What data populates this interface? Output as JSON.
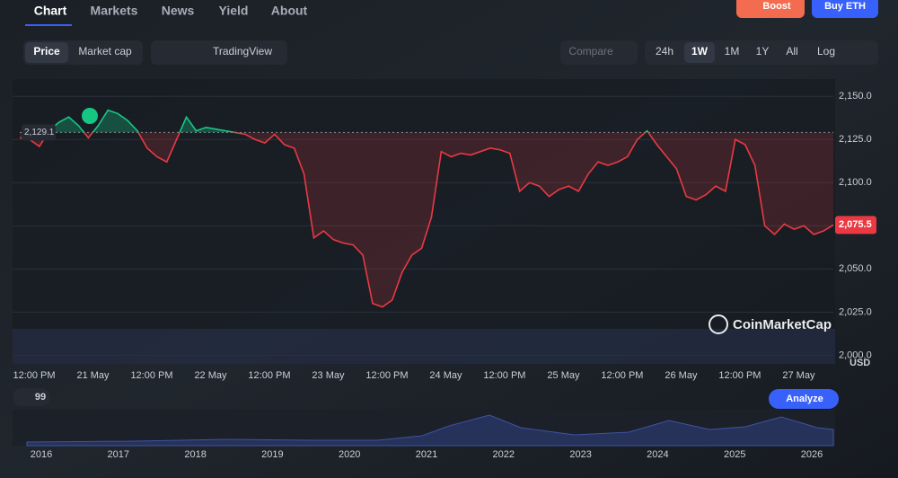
{
  "nav": {
    "tabs": [
      "Chart",
      "Markets",
      "News",
      "Yield",
      "About"
    ],
    "buttons": [
      "Boost",
      "Buy ETH"
    ]
  },
  "toolbar": {
    "toggle": [
      "Price",
      "Market cap"
    ],
    "tradingview": "TradingView",
    "compare": "Compare",
    "ranges": [
      "24h",
      "1W",
      "1M",
      "1Y",
      "All"
    ],
    "log": "Log"
  },
  "chart_data": {
    "type": "line",
    "currency": "USD",
    "watermark": "CoinMarketCap",
    "categories": [
      "12:00 PM",
      null,
      null,
      null,
      null,
      null,
      "21 May",
      null,
      null,
      null,
      null,
      null,
      "12:00 PM",
      null,
      null,
      null,
      null,
      null,
      "22 May",
      null,
      null,
      null,
      null,
      null,
      "12:00 PM",
      null,
      null,
      null,
      null,
      null,
      "23 May",
      null,
      null,
      null,
      null,
      null,
      "12:00 PM",
      null,
      null,
      null,
      null,
      null,
      "24 May",
      null,
      null,
      null,
      null,
      null,
      "12:00 PM",
      null,
      null,
      null,
      null,
      null,
      "25 May",
      null,
      null,
      null,
      null,
      null,
      "12:00 PM",
      null,
      null,
      null,
      null,
      null,
      "26 May",
      null,
      null,
      null,
      null,
      null,
      "12:00 PM",
      null,
      null,
      null,
      null,
      null,
      "27 May",
      null,
      null,
      null,
      null,
      null
    ],
    "values": [
      2126,
      2125,
      2121,
      2130,
      2135,
      2138,
      2133,
      2126,
      2133,
      2142,
      2140,
      2136,
      2130,
      2120,
      2115,
      2112,
      2125,
      2138,
      2130,
      2132,
      2131,
      2130,
      2129,
      2128,
      2125,
      2123,
      2128,
      2122,
      2120,
      2105,
      2068,
      2072,
      2067,
      2065,
      2064,
      2058,
      2030,
      2028,
      2032,
      2048,
      2058,
      2062,
      2080,
      2118,
      2115,
      2117,
      2116,
      2118,
      2120,
      2119,
      2117,
      2095,
      2100,
      2098,
      2092,
      2096,
      2098,
      2095,
      2105,
      2112,
      2110,
      2112,
      2115,
      2125,
      2130,
      2122,
      2115,
      2108,
      2092,
      2090,
      2093,
      2098,
      2095,
      2125,
      2122,
      2110,
      2075,
      2070,
      2076,
      2073,
      2075,
      2070,
      2072,
      2075.5
    ],
    "up_color": "#16c784",
    "down_color": "#ea3943",
    "baseline": {
      "value": 2129.1,
      "label": "2,129.1"
    },
    "current_price": {
      "value": 2075.5,
      "label": "2,075.5"
    },
    "ylim": [
      1995,
      2160
    ],
    "yticks": [
      {
        "value": 2000,
        "label": "2,000.0"
      },
      {
        "value": 2025,
        "label": "2,025.0"
      },
      {
        "value": 2050,
        "label": "2,050.0"
      },
      {
        "value": 2075,
        "label": "2,075.0"
      },
      {
        "value": 2100,
        "label": "2,100.0"
      },
      {
        "value": 2125,
        "label": "2,125.0"
      },
      {
        "value": 2150,
        "label": "2,150.0"
      }
    ],
    "grid": true
  },
  "navigator": {
    "badge": "99",
    "analyze": "Analyze",
    "years": [
      "2016",
      "2017",
      "2018",
      "2019",
      "2020",
      "2021",
      "2022",
      "2023",
      "2024",
      "2025",
      "2026"
    ]
  }
}
